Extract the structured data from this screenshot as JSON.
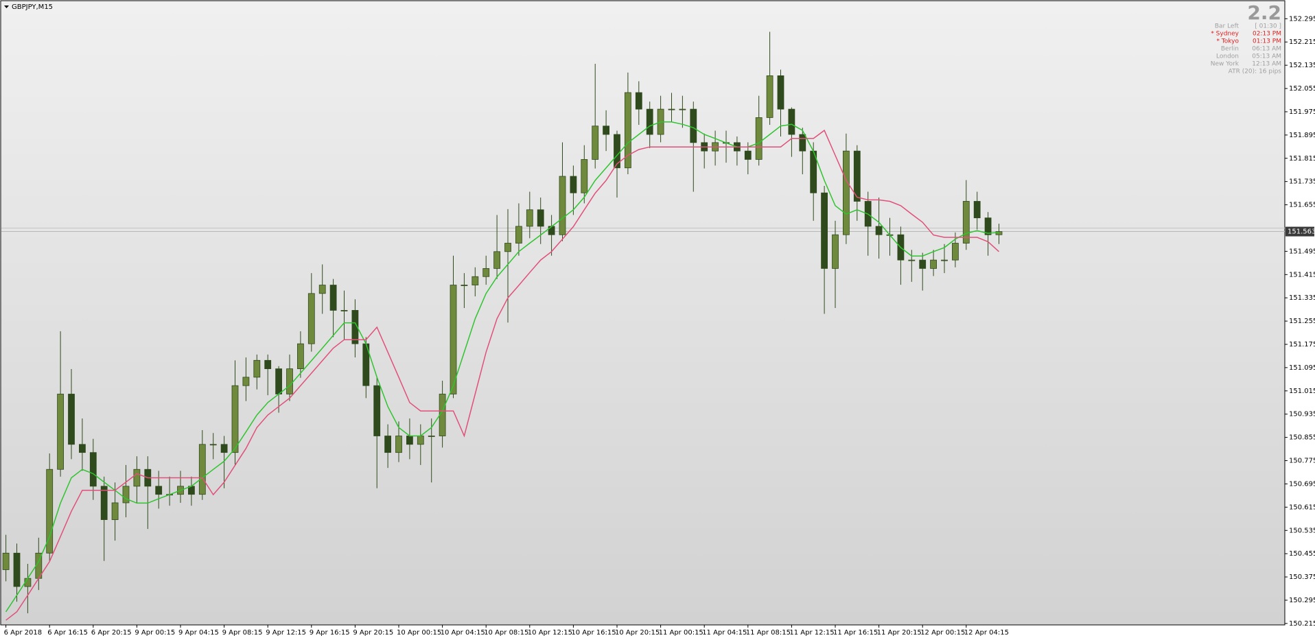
{
  "chart_data": {
    "type": "candlestick",
    "title": "GBPJPY,M15",
    "categories": [
      "6 Apr 2018",
      null,
      null,
      null,
      "6 Apr 16:15",
      null,
      null,
      null,
      "6 Apr 20:15",
      null,
      null,
      null,
      "9 Apr 00:15",
      null,
      null,
      null,
      "9 Apr 04:15",
      null,
      null,
      null,
      "9 Apr 08:15",
      null,
      null,
      null,
      "9 Apr 12:15",
      null,
      null,
      null,
      "9 Apr 16:15",
      null,
      null,
      null,
      "9 Apr 20:15",
      null,
      null,
      null,
      "10 Apr 00:15",
      null,
      null,
      null,
      "10 Apr 04:15",
      null,
      null,
      null,
      "10 Apr 08:15",
      null,
      null,
      null,
      "10 Apr 12:15",
      null,
      null,
      null,
      "10 Apr 16:15",
      null,
      null,
      null,
      "10 Apr 20:15",
      null,
      null,
      null,
      "11 Apr 00:15",
      null,
      null,
      null,
      "11 Apr 04:15",
      null,
      null,
      null,
      "11 Apr 08:15",
      null,
      null,
      null,
      "11 Apr 12:15",
      null,
      null,
      null,
      "11 Apr 16:15",
      null,
      null,
      null,
      "11 Apr 20:15",
      null,
      null,
      null,
      "12 Apr 00:15",
      null,
      null,
      null,
      "12 Apr 04:15",
      null,
      null,
      null
    ],
    "open": [
      150.4,
      150.457,
      150.342,
      150.37,
      150.457,
      150.745,
      151.004,
      150.831,
      150.803,
      150.687,
      150.572,
      150.63,
      150.687,
      150.745,
      150.687,
      150.659,
      150.659,
      150.687,
      150.659,
      150.831,
      150.831,
      150.803,
      151.033,
      151.062,
      151.12,
      151.091,
      151.004,
      151.091,
      151.177,
      151.35,
      151.379,
      151.292,
      151.292,
      151.177,
      151.033,
      150.86,
      150.803,
      150.86,
      150.831,
      150.86,
      150.86,
      151.004,
      151.379,
      151.379,
      151.408,
      151.436,
      151.494,
      151.523,
      151.581,
      151.638,
      151.581,
      151.552,
      151.753,
      151.696,
      151.811,
      151.926,
      151.897,
      151.782,
      152.041,
      151.984,
      151.897,
      151.984,
      151.984,
      151.984,
      151.869,
      151.84,
      151.869,
      151.869,
      151.84,
      151.811,
      151.955,
      152.099,
      151.984,
      151.897,
      151.84,
      151.696,
      151.436,
      151.552,
      151.84,
      151.667,
      151.581,
      151.552,
      151.552,
      151.465,
      151.465,
      151.436,
      151.465,
      151.465,
      151.523,
      151.667,
      151.61,
      151.552
    ],
    "high": [
      150.52,
      150.49,
      150.42,
      150.51,
      150.8,
      151.22,
      151.09,
      150.92,
      150.85,
      150.72,
      150.7,
      150.76,
      150.79,
      150.79,
      150.74,
      150.72,
      150.74,
      150.72,
      150.88,
      150.87,
      150.86,
      151.12,
      151.13,
      151.14,
      151.14,
      151.1,
      151.14,
      151.22,
      151.42,
      151.45,
      151.4,
      151.36,
      151.33,
      151.2,
      151.06,
      150.9,
      150.91,
      150.92,
      150.9,
      150.92,
      151.05,
      151.48,
      151.42,
      151.44,
      151.48,
      151.62,
      151.64,
      151.66,
      151.7,
      151.68,
      151.62,
      151.87,
      151.79,
      151.86,
      152.14,
      151.98,
      151.91,
      152.11,
      152.08,
      152.01,
      152.03,
      152.04,
      152.03,
      152.01,
      151.9,
      151.91,
      151.91,
      151.89,
      151.87,
      152.03,
      152.25,
      152.12,
      151.99,
      151.92,
      151.87,
      151.72,
      151.6,
      151.9,
      151.86,
      151.7,
      151.68,
      151.61,
      151.58,
      151.5,
      151.49,
      151.5,
      151.52,
      151.56,
      151.74,
      151.7,
      151.63,
      151.59
    ],
    "low": [
      150.36,
      150.29,
      150.25,
      150.33,
      150.43,
      150.72,
      150.78,
      150.74,
      150.64,
      150.43,
      150.5,
      150.58,
      150.63,
      150.54,
      150.61,
      150.62,
      150.63,
      150.62,
      150.64,
      150.78,
      150.68,
      150.76,
      150.98,
      151.02,
      151.0,
      150.94,
      150.98,
      151.06,
      151.15,
      151.28,
      151.2,
      151.19,
      151.13,
      150.99,
      150.68,
      150.75,
      150.77,
      150.78,
      150.76,
      150.7,
      150.82,
      150.99,
      151.3,
      151.34,
      151.38,
      151.4,
      151.25,
      151.48,
      151.54,
      151.52,
      151.48,
      151.53,
      151.62,
      151.66,
      151.78,
      151.84,
      151.68,
      151.76,
      151.93,
      151.85,
      151.87,
      151.94,
      151.92,
      151.7,
      151.78,
      151.79,
      151.8,
      151.79,
      151.76,
      151.79,
      151.93,
      151.89,
      151.82,
      151.76,
      151.6,
      151.28,
      151.3,
      151.52,
      151.6,
      151.48,
      151.47,
      151.48,
      151.38,
      151.39,
      151.36,
      151.41,
      151.42,
      151.44,
      151.5,
      151.57,
      151.48,
      151.52
    ],
    "close": [
      150.457,
      150.342,
      150.37,
      150.457,
      150.745,
      151.004,
      150.831,
      150.803,
      150.687,
      150.572,
      150.63,
      150.687,
      150.745,
      150.687,
      150.659,
      150.659,
      150.687,
      150.659,
      150.831,
      150.831,
      150.803,
      151.033,
      151.062,
      151.12,
      151.091,
      151.004,
      151.091,
      151.177,
      151.35,
      151.379,
      151.292,
      151.292,
      151.177,
      151.033,
      150.86,
      150.803,
      150.86,
      150.831,
      150.86,
      150.86,
      151.004,
      151.379,
      151.379,
      151.408,
      151.436,
      151.494,
      151.523,
      151.581,
      151.638,
      151.581,
      151.552,
      151.753,
      151.696,
      151.811,
      151.926,
      151.897,
      151.782,
      152.041,
      151.984,
      151.897,
      151.984,
      151.984,
      151.984,
      151.869,
      151.84,
      151.869,
      151.869,
      151.84,
      151.811,
      151.955,
      152.099,
      151.984,
      151.897,
      151.84,
      151.696,
      151.436,
      151.552,
      151.84,
      151.667,
      151.581,
      151.552,
      151.552,
      151.465,
      151.465,
      151.436,
      151.465,
      151.465,
      151.523,
      151.667,
      151.61,
      151.552,
      151.563
    ],
    "bull_color": "#6f8a3c",
    "bear_color": "#2f4a1c",
    "wick_color": "#2f4a1c",
    "series": [
      {
        "color": "#2fc42f",
        "values": [
          150.255,
          150.312,
          150.37,
          150.428,
          150.514,
          150.629,
          150.716,
          150.745,
          150.73,
          150.701,
          150.673,
          150.644,
          150.629,
          150.629,
          150.644,
          150.658,
          150.673,
          150.687,
          150.716,
          150.745,
          150.773,
          150.817,
          150.874,
          150.932,
          150.975,
          151.004,
          151.033,
          151.076,
          151.119,
          151.162,
          151.206,
          151.249,
          151.249,
          151.177,
          151.062,
          150.961,
          150.889,
          150.86,
          150.86,
          150.889,
          150.946,
          151.033,
          151.148,
          151.263,
          151.35,
          151.407,
          151.45,
          151.494,
          151.523,
          151.551,
          151.58,
          151.609,
          151.638,
          151.681,
          151.739,
          151.782,
          151.825,
          151.868,
          151.897,
          151.926,
          151.94,
          151.94,
          151.932,
          151.92,
          151.897,
          151.883,
          151.868,
          151.854,
          151.854,
          151.868,
          151.897,
          151.926,
          151.932,
          151.911,
          151.839,
          151.739,
          151.652,
          151.623,
          151.638,
          151.623,
          151.595,
          151.551,
          151.508,
          151.479,
          151.479,
          151.494,
          151.508,
          151.537,
          151.557,
          151.566,
          151.557,
          151.56
        ]
      },
      {
        "color": "#e0507a",
        "values": [
          150.226,
          150.255,
          150.312,
          150.37,
          150.428,
          150.514,
          150.601,
          150.673,
          150.673,
          150.673,
          150.673,
          150.701,
          150.73,
          150.716,
          150.716,
          150.716,
          150.716,
          150.716,
          150.716,
          150.658,
          150.701,
          150.759,
          150.817,
          150.889,
          150.932,
          150.961,
          150.99,
          151.033,
          151.076,
          151.119,
          151.162,
          151.191,
          151.191,
          151.191,
          151.234,
          151.148,
          151.062,
          150.975,
          150.946,
          150.946,
          150.946,
          150.946,
          150.86,
          151.004,
          151.148,
          151.263,
          151.335,
          151.378,
          151.422,
          151.465,
          151.494,
          151.537,
          151.58,
          151.638,
          151.695,
          151.739,
          151.796,
          151.825,
          151.845,
          151.854,
          151.854,
          151.854,
          151.854,
          151.854,
          151.854,
          151.854,
          151.854,
          151.854,
          151.854,
          151.854,
          151.854,
          151.854,
          151.883,
          151.883,
          151.883,
          151.911,
          151.825,
          151.739,
          151.681,
          151.672,
          151.672,
          151.667,
          151.652,
          151.623,
          151.595,
          151.551,
          151.543,
          151.543,
          151.543,
          151.543,
          151.528,
          151.494
        ]
      }
    ],
    "ylim": [
      150.21,
      152.35
    ],
    "yticks": [
      150.215,
      150.295,
      150.375,
      150.455,
      150.535,
      150.615,
      150.695,
      150.775,
      150.855,
      150.935,
      151.015,
      151.095,
      151.175,
      151.255,
      151.335,
      151.415,
      151.495,
      151.655,
      151.735,
      151.815,
      151.895,
      151.975,
      152.055,
      152.135,
      152.215,
      152.295
    ],
    "current_price": 151.563,
    "grid": false
  },
  "info_panel": {
    "spread": "2.2",
    "rows": [
      {
        "label": "Bar Left",
        "time": "[ 01:30 ]",
        "color": "#a0a0a0"
      },
      {
        "label": "* Sydney",
        "time": "02:13 PM",
        "color": "#e02020"
      },
      {
        "label": "* Tokyo",
        "time": "01:13 PM",
        "color": "#e02020"
      },
      {
        "label": "Berlin",
        "time": "06:13 AM",
        "color": "#a0a0a0"
      },
      {
        "label": "London",
        "time": "05:13 AM",
        "color": "#a0a0a0"
      },
      {
        "label": "New York",
        "time": "12:13 AM",
        "color": "#a0a0a0"
      }
    ],
    "atr": "ATR (20): 16 pips"
  }
}
